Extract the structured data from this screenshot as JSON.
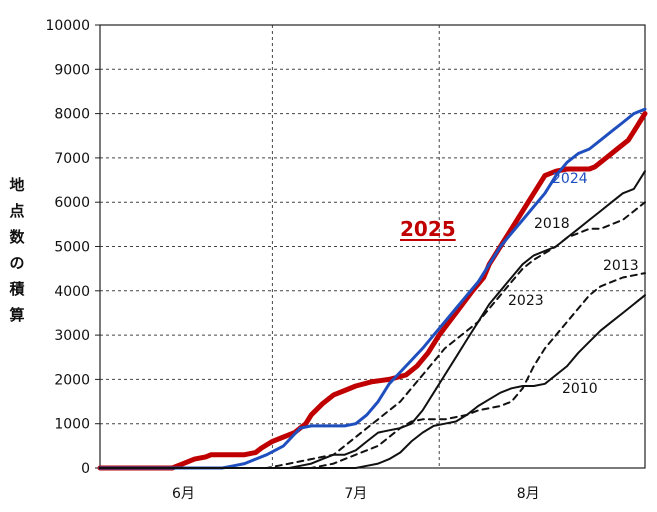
{
  "chart_data": {
    "type": "line",
    "ylabel": "地点数の積算",
    "ylim": [
      0,
      10000
    ],
    "yticks": [
      0,
      1000,
      2000,
      3000,
      4000,
      5000,
      6000,
      7000,
      8000,
      9000,
      10000
    ],
    "xlim": [
      0,
      98
    ],
    "month_labels": [
      {
        "label": "6月",
        "x": 15
      },
      {
        "label": "7月",
        "x": 46
      },
      {
        "label": "8月",
        "x": 77
      }
    ],
    "month_boundaries": [
      31,
      61
    ],
    "grid": true,
    "series": [
      {
        "name": "2025",
        "color": "#c00000",
        "dash": "solid",
        "width": 5,
        "label_underline": true,
        "x": [
          0,
          13,
          15,
          17,
          19,
          20,
          22,
          24,
          26,
          28,
          29,
          31,
          33,
          35,
          37,
          38,
          40,
          42,
          44,
          46,
          49,
          52,
          55,
          57,
          59,
          61,
          64,
          67,
          69,
          70,
          72,
          74,
          77,
          80,
          82,
          84,
          86,
          88,
          89,
          91,
          93,
          95,
          96,
          97,
          98
        ],
        "y": [
          0,
          0,
          100,
          200,
          250,
          300,
          300,
          300,
          300,
          350,
          450,
          600,
          700,
          800,
          1000,
          1200,
          1450,
          1650,
          1750,
          1850,
          1950,
          2000,
          2100,
          2300,
          2600,
          3000,
          3500,
          4000,
          4300,
          4600,
          5000,
          5400,
          6000,
          6600,
          6700,
          6750,
          6750,
          6750,
          6800,
          7000,
          7200,
          7400,
          7600,
          7800,
          8000
        ]
      },
      {
        "name": "2024",
        "color": "#1f4fbf",
        "dash": "solid",
        "width": 3,
        "x": [
          0,
          18,
          20,
          22,
          24,
          26,
          28,
          30,
          33,
          36,
          38,
          40,
          42,
          44,
          46,
          48,
          50,
          52,
          55,
          58,
          60,
          62,
          64,
          66,
          68,
          70,
          72,
          74,
          76,
          78,
          80,
          82,
          84,
          86,
          88,
          90,
          92,
          94,
          96,
          98
        ],
        "y": [
          0,
          0,
          0,
          0,
          50,
          100,
          200,
          300,
          500,
          900,
          950,
          950,
          950,
          950,
          1000,
          1200,
          1500,
          1900,
          2300,
          2700,
          3000,
          3300,
          3600,
          3900,
          4200,
          4600,
          5000,
          5300,
          5600,
          5900,
          6200,
          6600,
          6900,
          7100,
          7200,
          7400,
          7600,
          7800,
          8000,
          8100
        ]
      },
      {
        "name": "2018",
        "color": "#111111",
        "dash": "6,5",
        "width": 2,
        "x": [
          0,
          30,
          32,
          34,
          36,
          38,
          40,
          42,
          44,
          46,
          48,
          50,
          52,
          54,
          56,
          58,
          60,
          62,
          64,
          66,
          68,
          70,
          72,
          74,
          76,
          78,
          80,
          82,
          84,
          86,
          88,
          90,
          92,
          94,
          96,
          98
        ],
        "y": [
          0,
          0,
          50,
          100,
          150,
          200,
          250,
          300,
          500,
          700,
          900,
          1100,
          1300,
          1500,
          1800,
          2100,
          2400,
          2700,
          2900,
          3100,
          3300,
          3600,
          3900,
          4200,
          4500,
          4700,
          4850,
          5000,
          5200,
          5300,
          5400,
          5400,
          5500,
          5600,
          5800,
          6000
        ]
      },
      {
        "name": "2023",
        "color": "#111111",
        "dash": "solid",
        "width": 2,
        "x": [
          0,
          34,
          36,
          38,
          40,
          42,
          44,
          46,
          48,
          50,
          52,
          54,
          56,
          58,
          60,
          62,
          64,
          66,
          68,
          70,
          72,
          74,
          76,
          78,
          80,
          82,
          84,
          86,
          88,
          90,
          92,
          94,
          96,
          98
        ],
        "y": [
          0,
          0,
          50,
          100,
          200,
          300,
          300,
          400,
          600,
          800,
          850,
          900,
          1000,
          1300,
          1700,
          2100,
          2500,
          2900,
          3300,
          3700,
          4000,
          4300,
          4600,
          4800,
          4900,
          5000,
          5200,
          5400,
          5600,
          5800,
          6000,
          6200,
          6300,
          6700
        ]
      },
      {
        "name": "2013",
        "color": "#111111",
        "dash": "6,5",
        "width": 2,
        "x": [
          0,
          38,
          40,
          42,
          44,
          46,
          48,
          50,
          52,
          54,
          56,
          58,
          60,
          62,
          64,
          66,
          68,
          70,
          72,
          74,
          76,
          78,
          80,
          82,
          84,
          86,
          88,
          90,
          92,
          94,
          96,
          98
        ],
        "y": [
          0,
          0,
          50,
          100,
          200,
          300,
          400,
          500,
          700,
          900,
          1050,
          1100,
          1100,
          1100,
          1150,
          1200,
          1300,
          1350,
          1400,
          1500,
          1800,
          2300,
          2700,
          3000,
          3300,
          3600,
          3900,
          4100,
          4200,
          4300,
          4350,
          4400
        ]
      },
      {
        "name": "2010",
        "color": "#111111",
        "dash": "solid",
        "width": 2,
        "x": [
          0,
          44,
          46,
          48,
          50,
          52,
          54,
          56,
          58,
          60,
          62,
          64,
          66,
          68,
          70,
          72,
          74,
          76,
          78,
          80,
          82,
          84,
          86,
          88,
          90,
          92,
          94,
          96,
          98
        ],
        "y": [
          0,
          0,
          0,
          50,
          100,
          200,
          350,
          600,
          800,
          950,
          1000,
          1050,
          1200,
          1400,
          1550,
          1700,
          1800,
          1850,
          1850,
          1900,
          2100,
          2300,
          2600,
          2850,
          3100,
          3300,
          3500,
          3700,
          3900
        ]
      }
    ]
  }
}
